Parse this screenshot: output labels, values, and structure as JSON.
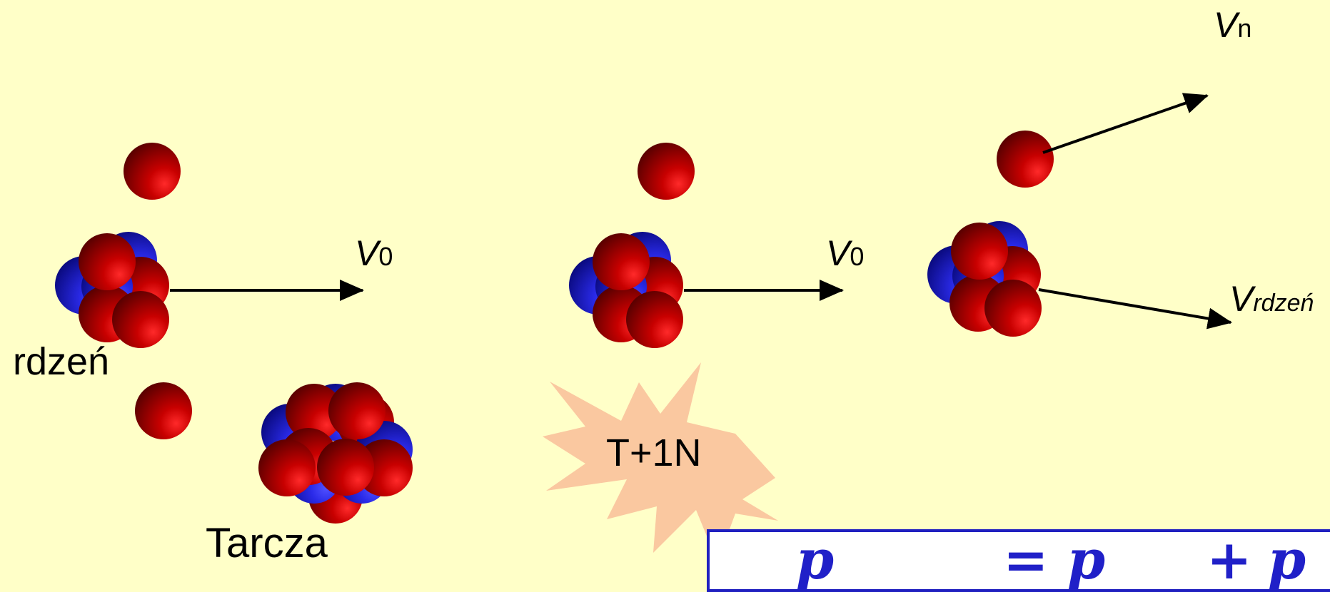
{
  "labels": {
    "v0": {
      "symbol": "V",
      "subscript": "0"
    },
    "vn": {
      "symbol": "V",
      "subscript": "n"
    },
    "vrdzen": {
      "symbol": "V",
      "subscript": "rdzeń"
    },
    "core": "rdzeń",
    "target": "Tarcza",
    "collision": "T+1N"
  },
  "equation": {
    "term1": "p",
    "equals": "=",
    "term2": "p",
    "plus": "+",
    "term3": "p"
  },
  "colors": {
    "background": "#FFFFC8",
    "proton": "#C80000",
    "neutron_blue": "#2A2AE8",
    "burst": "#FAC8A0",
    "equation": "#2020C8"
  }
}
